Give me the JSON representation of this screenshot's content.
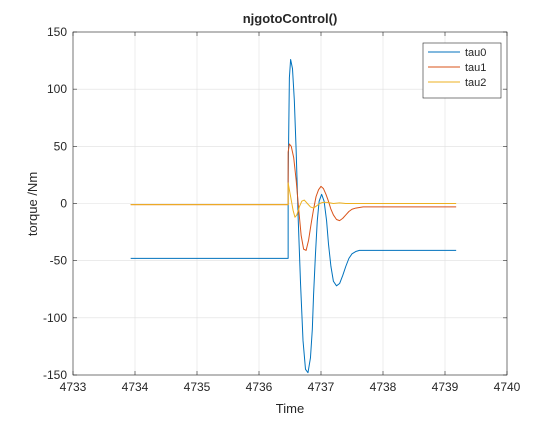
{
  "chart_data": {
    "type": "line",
    "title": "njgotoControl()",
    "xlabel": "Time",
    "ylabel": "torque /Nm",
    "xlim": [
      4733,
      4740
    ],
    "ylim": [
      -150,
      150
    ],
    "xticks": [
      4733,
      4734,
      4735,
      4736,
      4737,
      4738,
      4739,
      4740
    ],
    "yticks": [
      -150,
      -100,
      -50,
      0,
      50,
      100,
      150
    ],
    "grid": true,
    "legend_position": "top-right",
    "series": [
      {
        "name": "tau0",
        "color": "#0072BD",
        "x": [
          4733.93,
          4736.47,
          4736.47,
          4736.49,
          4736.51,
          4736.54,
          4736.57,
          4736.6,
          4736.63,
          4736.67,
          4736.71,
          4736.75,
          4736.79,
          4736.83,
          4736.86,
          4736.88,
          4736.91,
          4736.94,
          4736.97,
          4737.01,
          4737.05,
          4737.09,
          4737.12,
          4737.16,
          4737.2,
          4737.25,
          4737.3,
          4737.35,
          4737.4,
          4737.45,
          4737.5,
          4737.56,
          4737.62,
          4737.68,
          4737.74,
          4737.8,
          4737.9,
          4738.0,
          4738.5,
          4739.18
        ],
        "y": [
          -48,
          -48,
          20,
          110,
          126,
          118,
          90,
          45,
          -10,
          -70,
          -120,
          -145,
          -148,
          -135,
          -110,
          -80,
          -45,
          -15,
          2,
          8,
          2,
          -15,
          -35,
          -55,
          -68,
          -72,
          -70,
          -63,
          -55,
          -48,
          -44,
          -42,
          -41,
          -41,
          -41,
          -41,
          -41,
          -41,
          -41,
          -41
        ]
      },
      {
        "name": "tau1",
        "color": "#D95319",
        "x": [
          4733.93,
          4736.47,
          4736.47,
          4736.49,
          4736.52,
          4736.56,
          4736.6,
          4736.64,
          4736.68,
          4736.72,
          4736.76,
          4736.8,
          4736.84,
          4736.88,
          4736.92,
          4736.96,
          4737.0,
          4737.04,
          4737.08,
          4737.12,
          4737.16,
          4737.2,
          4737.25,
          4737.3,
          4737.35,
          4737.4,
          4737.45,
          4737.5,
          4737.56,
          4737.62,
          4737.68,
          4737.74,
          4737.8,
          4737.9,
          4738.5,
          4739.18
        ],
        "y": [
          -1,
          -1,
          45,
          52,
          50,
          40,
          20,
          -5,
          -28,
          -40,
          -41,
          -32,
          -18,
          -5,
          6,
          12,
          15,
          13,
          8,
          2,
          -5,
          -10,
          -14,
          -15,
          -13,
          -10,
          -7,
          -5,
          -4,
          -3.5,
          -3,
          -3,
          -3,
          -3,
          -3,
          -3
        ]
      },
      {
        "name": "tau2",
        "color": "#EDB120",
        "x": [
          4733.93,
          4736.47,
          4736.47,
          4736.49,
          4736.52,
          4736.55,
          4736.58,
          4736.61,
          4736.65,
          4736.69,
          4736.73,
          4736.78,
          4736.83,
          4736.88,
          4736.93,
          4736.98,
          4737.03,
          4737.1,
          4737.2,
          4737.3,
          4737.4,
          4737.5,
          4737.6,
          4737.8,
          4738.0,
          4738.5,
          4739.18
        ],
        "y": [
          -1,
          -1,
          18,
          12,
          3,
          -6,
          -12,
          -10,
          -3,
          2,
          3,
          0,
          -3,
          -4,
          -2,
          0,
          1,
          1,
          0,
          0.5,
          0,
          0,
          0,
          0,
          0,
          0,
          0
        ]
      }
    ]
  }
}
